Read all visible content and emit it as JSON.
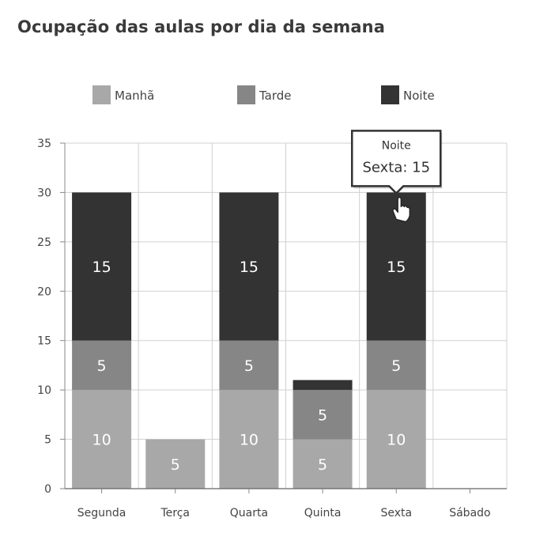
{
  "title": "Ocupação das aulas por dia da semana",
  "colors": {
    "Manhã": "#a8a8a8",
    "Tarde": "#868686",
    "Noite": "#333333"
  },
  "tooltip": {
    "series": "Noite",
    "category": "Sexta",
    "value": "15",
    "separator": ": "
  },
  "chart_data": {
    "type": "bar",
    "stacked": true,
    "title": "Ocupação das aulas por dia da semana",
    "categories": [
      "Segunda",
      "Terça",
      "Quarta",
      "Quinta",
      "Sexta",
      "Sábado"
    ],
    "series": [
      {
        "name": "Manhã",
        "values": [
          10,
          5,
          10,
          5,
          10,
          0
        ]
      },
      {
        "name": "Tarde",
        "values": [
          5,
          0,
          5,
          5,
          5,
          0
        ]
      },
      {
        "name": "Noite",
        "values": [
          15,
          0,
          15,
          1,
          15,
          0
        ]
      }
    ],
    "ylim": [
      0,
      35
    ],
    "yticks": [
      0,
      5,
      10,
      15,
      20,
      25,
      30,
      35
    ],
    "grid": true,
    "legend_position": "top"
  }
}
